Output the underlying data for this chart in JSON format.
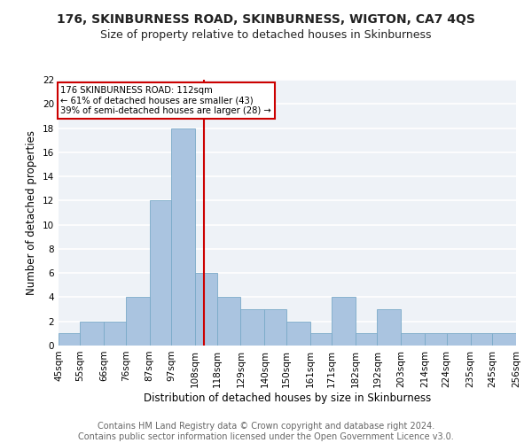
{
  "title": "176, SKINBURNESS ROAD, SKINBURNESS, WIGTON, CA7 4QS",
  "subtitle": "Size of property relative to detached houses in Skinburness",
  "xlabel": "Distribution of detached houses by size in Skinburness",
  "ylabel": "Number of detached properties",
  "footer_line1": "Contains HM Land Registry data © Crown copyright and database right 2024.",
  "footer_line2": "Contains public sector information licensed under the Open Government Licence v3.0.",
  "bar_edges": [
    45,
    55,
    66,
    76,
    87,
    97,
    108,
    118,
    129,
    140,
    150,
    161,
    171,
    182,
    192,
    203,
    214,
    224,
    235,
    245,
    256
  ],
  "bar_heights": [
    1,
    2,
    2,
    4,
    12,
    18,
    6,
    4,
    3,
    3,
    2,
    1,
    4,
    1,
    3,
    1,
    1,
    1,
    1,
    1
  ],
  "bar_labels": [
    "45sqm",
    "55sqm",
    "66sqm",
    "76sqm",
    "87sqm",
    "97sqm",
    "108sqm",
    "118sqm",
    "129sqm",
    "140sqm",
    "150sqm",
    "161sqm",
    "171sqm",
    "182sqm",
    "192sqm",
    "203sqm",
    "214sqm",
    "224sqm",
    "235sqm",
    "245sqm",
    "256sqm"
  ],
  "vline_x": 112,
  "vline_color": "#cc0000",
  "bar_color": "#aac4e0",
  "bar_edge_color": "#7aaac8",
  "annotation_line1": "176 SKINBURNESS ROAD: 112sqm",
  "annotation_line2": "← 61% of detached houses are smaller (43)",
  "annotation_line3": "39% of semi-detached houses are larger (28) →",
  "annotation_box_color": "#cc0000",
  "ylim": [
    0,
    22
  ],
  "yticks": [
    0,
    2,
    4,
    6,
    8,
    10,
    12,
    14,
    16,
    18,
    20,
    22
  ],
  "bg_color": "#eef2f7",
  "grid_color": "#ffffff",
  "title_fontsize": 10,
  "subtitle_fontsize": 9,
  "axis_label_fontsize": 8.5,
  "tick_fontsize": 7.5,
  "footer_fontsize": 7
}
